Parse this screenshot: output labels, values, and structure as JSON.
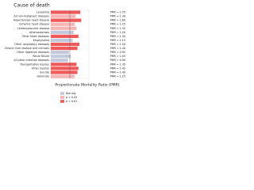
{
  "chart_data": {
    "type": "bar",
    "orientation": "horizontal",
    "title": "Cause of death",
    "x_label": "Proportionate Mortality Ratio (PMR)",
    "categories": [
      "Leukemia",
      "All non-malignant diseases",
      "Hypertensive heart disease",
      "Ischemic heart disease",
      "Cerebrovascular disease",
      "Atherosclerosis",
      "Other heart diseases",
      "Emphysema",
      "Other respiratory diseases",
      "Chronic liver disease and cirrhosis",
      "Other digestive diseases",
      "Renal failure",
      "All other infective diseases",
      "Transportation injuries",
      "Other injuries",
      "Suicide",
      "Homicide"
    ],
    "values": [
      1.55,
      1.3,
      1.6,
      1.25,
      1.35,
      1.2,
      1.45,
      1.15,
      1.5,
      1.4,
      0.95,
      1.05,
      0.9,
      1.35,
      1.45,
      1.4,
      1.25
    ],
    "value_labels": [
      "PMR = 1.55",
      "PMR = 1.30",
      "PMR = 1.60",
      "PMR = 1.25",
      "PMR = 1.35",
      "PMR = 1.20",
      "PMR = 1.45",
      "PMR = 1.15",
      "PMR = 1.50",
      "PMR = 1.40",
      "PMR = 0.95",
      "PMR = 1.05",
      "PMR = 0.90",
      "PMR = 1.35",
      "PMR = 1.45",
      "PMR = 1.40",
      "PMR = 1.25"
    ],
    "colors": [
      "#ee5a5a",
      "#f5b5b5",
      "#ee5a5a",
      "#f5b5b5",
      "#f5b5b5",
      "#c3c9dd",
      "#ee5a5a",
      "#c3c9dd",
      "#ee5a5a",
      "#ee5a5a",
      "#c3c9dd",
      "#c3c9dd",
      "#c3c9dd",
      "#ee5a5a",
      "#ee5a5a",
      "#ee5a5a",
      "#f5b5b5"
    ],
    "xlim": [
      0,
      2
    ],
    "reference_line": 1,
    "legend": [
      {
        "name": "Non-sig",
        "color": "#c3c9dd"
      },
      {
        "name": "p < 0.05",
        "color": "#f5b5b5"
      },
      {
        "name": "p < 0.01",
        "color": "#ee5a5a"
      }
    ]
  }
}
